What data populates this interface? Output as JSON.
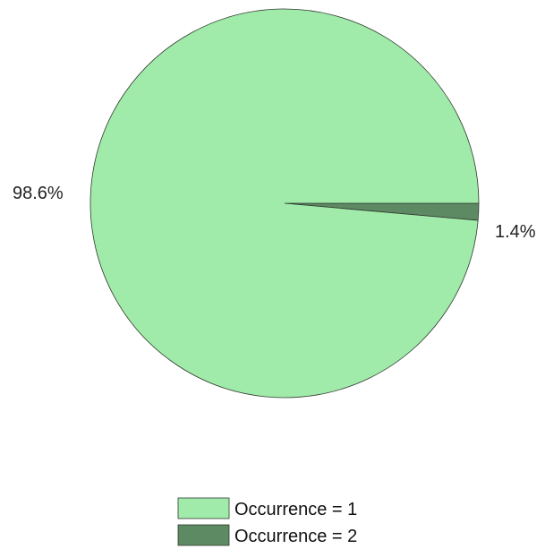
{
  "chart_data": {
    "type": "pie",
    "title": "",
    "slices": [
      {
        "label": "Occurrence = 1",
        "value": 98.6,
        "display": "98.6%",
        "color": "#a1ebaa"
      },
      {
        "label": "Occurrence = 2",
        "value": 1.4,
        "display": "1.4%",
        "color": "#5e8a63"
      }
    ],
    "legend_position": "bottom-center",
    "edge_color": "#2f3a30"
  }
}
